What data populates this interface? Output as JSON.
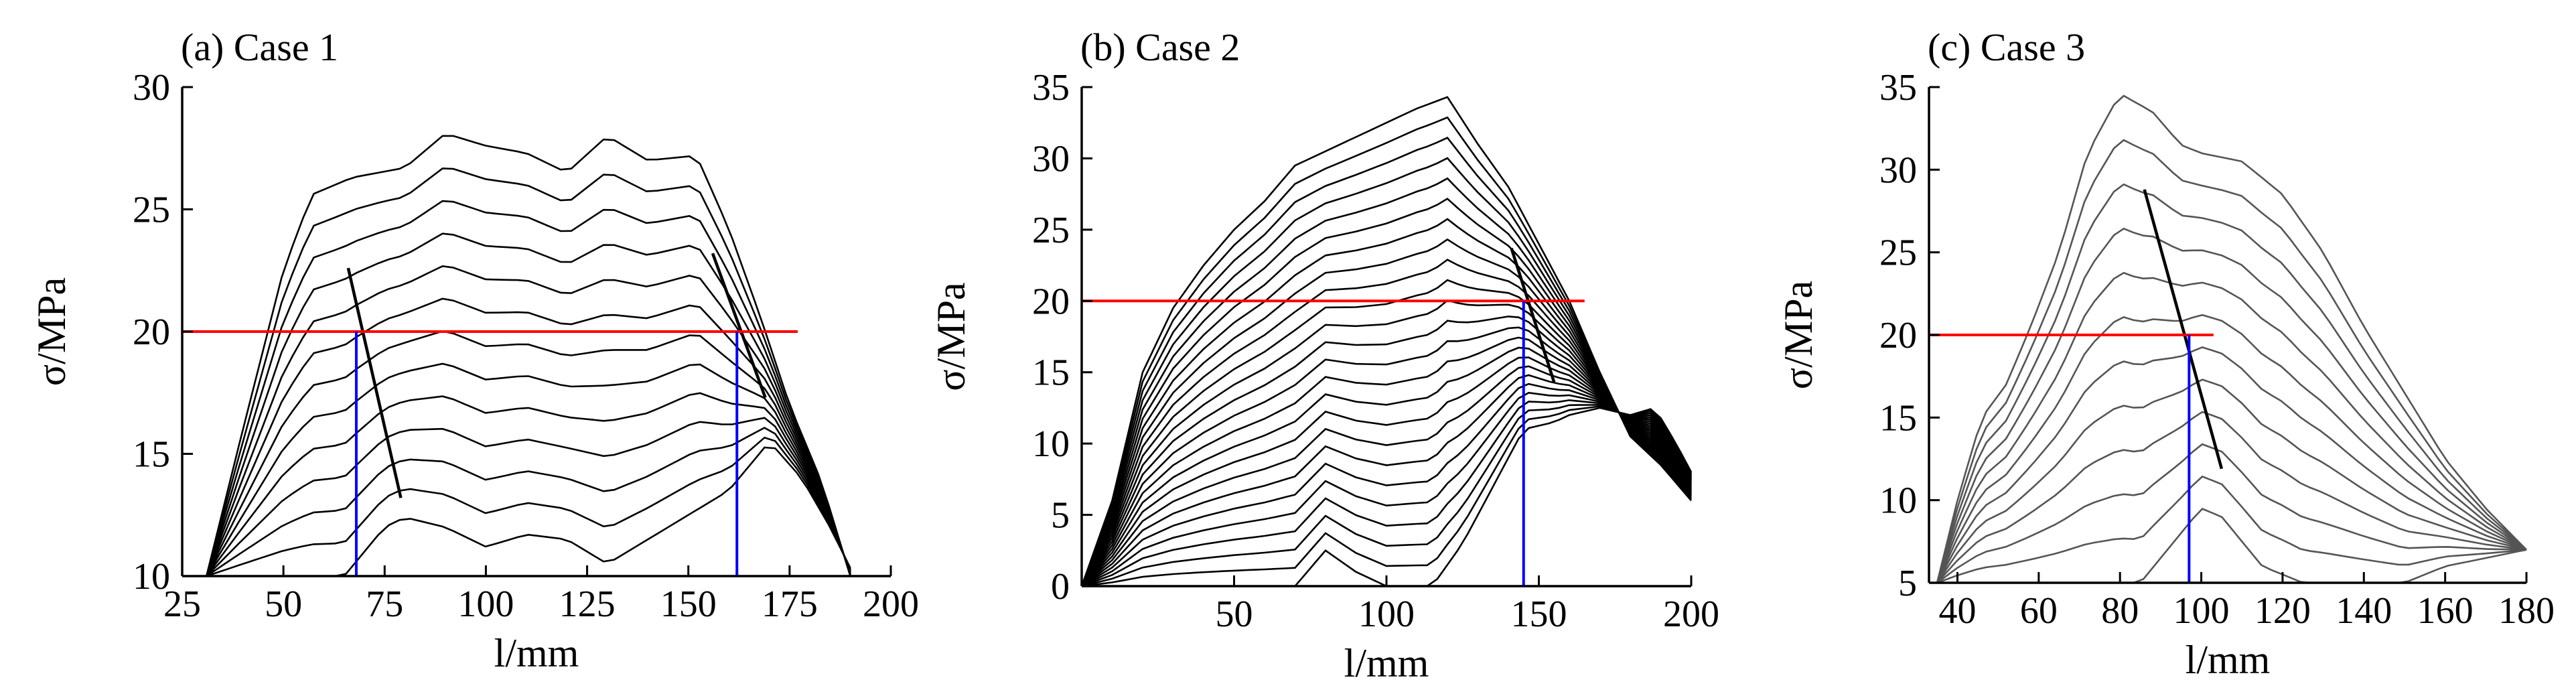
{
  "chart_data": [
    {
      "type": "line",
      "title": "(a) Case 1",
      "xlabel": "l/mm",
      "ylabel": "σ/MPa",
      "xlim": [
        25,
        200
      ],
      "ylim": [
        10,
        30
      ],
      "xticks": [
        25,
        50,
        75,
        100,
        125,
        150,
        175,
        200
      ],
      "yticks": [
        10,
        15,
        20,
        25,
        30
      ],
      "grid": false,
      "series_color": "#000000",
      "family": {
        "count": 13,
        "top_profile": [
          [
            31,
            10
          ],
          [
            40,
            16
          ],
          [
            50,
            22.5
          ],
          [
            57,
            25.6
          ],
          [
            67,
            26.3
          ],
          [
            80,
            26.7
          ],
          [
            90,
            28.1
          ],
          [
            100,
            27.6
          ],
          [
            110,
            27.3
          ],
          [
            120,
            26.5
          ],
          [
            130,
            28
          ],
          [
            140,
            27
          ],
          [
            152,
            27.2
          ],
          [
            160,
            24.2
          ],
          [
            168,
            20.5
          ],
          [
            175,
            17
          ],
          [
            183,
            13.8
          ],
          [
            190,
            10
          ]
        ],
        "bottom_profile": [
          [
            31,
            10
          ],
          [
            40,
            10
          ],
          [
            55,
            10
          ],
          [
            65,
            10
          ],
          [
            75,
            12
          ],
          [
            80,
            12.4
          ],
          [
            90,
            12
          ],
          [
            100,
            11.2
          ],
          [
            110,
            11.7
          ],
          [
            120,
            11.5
          ],
          [
            130,
            10.5
          ],
          [
            140,
            11.5
          ],
          [
            150,
            12.5
          ],
          [
            160,
            13.5
          ],
          [
            170,
            15.5
          ],
          [
            178,
            14
          ],
          [
            185,
            12
          ],
          [
            191,
            10
          ]
        ],
        "left_edge_x": 31,
        "right_edge_x": 190
      },
      "reference_line": {
        "y": 20,
        "x_from": 25,
        "x_to": 177,
        "color": "#ff0000"
      },
      "vertical_lines": [
        {
          "x": 68,
          "y_from": 10,
          "y_to": 20
        },
        {
          "x": 162,
          "y_from": 10,
          "y_to": 20
        }
      ],
      "vertical_line_color": "#0000ff",
      "trend_lines": [
        [
          [
            66,
            22.6
          ],
          [
            79,
            13.2
          ]
        ],
        [
          [
            156,
            23.2
          ],
          [
            169,
            17.3
          ]
        ]
      ],
      "trend_line_color": "#000000"
    },
    {
      "type": "line",
      "title": "(b) Case 2",
      "xlabel": "l/mm",
      "ylabel": "σ/MPa",
      "xlim": [
        0,
        200
      ],
      "ylim": [
        0,
        35
      ],
      "xticks": [
        50,
        100,
        150,
        200
      ],
      "yticks": [
        0,
        5,
        10,
        15,
        20,
        25,
        30,
        35
      ],
      "grid": false,
      "series_color": "#000000",
      "family": {
        "count": 24,
        "top_profile": [
          [
            0,
            0
          ],
          [
            10,
            6
          ],
          [
            20,
            15
          ],
          [
            30,
            19.5
          ],
          [
            40,
            22.5
          ],
          [
            50,
            25
          ],
          [
            60,
            27
          ],
          [
            70,
            29.5
          ],
          [
            80,
            30.5
          ],
          [
            90,
            31.5
          ],
          [
            100,
            32.5
          ],
          [
            110,
            33.5
          ],
          [
            120,
            34.3
          ],
          [
            130,
            31
          ],
          [
            140,
            28
          ],
          [
            150,
            24
          ],
          [
            160,
            20
          ],
          [
            170,
            15
          ],
          [
            180,
            10.5
          ],
          [
            190,
            8.5
          ],
          [
            200,
            6
          ]
        ],
        "bottom_profile": [
          [
            0,
            0
          ],
          [
            20,
            0
          ],
          [
            40,
            0
          ],
          [
            60,
            0
          ],
          [
            70,
            0
          ],
          [
            80,
            2.5
          ],
          [
            90,
            1
          ],
          [
            100,
            0
          ],
          [
            115,
            0
          ],
          [
            125,
            3
          ],
          [
            135,
            7
          ],
          [
            145,
            11
          ],
          [
            155,
            11.5
          ],
          [
            160,
            12
          ],
          [
            170,
            12.5
          ],
          [
            180,
            12
          ],
          [
            188,
            12.5
          ],
          [
            195,
            10
          ],
          [
            200,
            8
          ]
        ],
        "left_edge_x": 0,
        "right_edge_x": 200
      },
      "reference_line": {
        "y": 20,
        "x_from": 0,
        "x_to": 165,
        "color": "#ff0000"
      },
      "vertical_lines": [
        {
          "x": 145,
          "y_from": 0,
          "y_to": 20
        }
      ],
      "vertical_line_color": "#0000ff",
      "trend_lines": [
        [
          [
            141,
            23.7
          ],
          [
            155,
            14.3
          ]
        ]
      ],
      "trend_line_color": "#000000"
    },
    {
      "type": "line",
      "title": "(c) Case 3",
      "xlabel": "l/mm",
      "ylabel": "σ/MPa",
      "xlim": [
        33,
        180
      ],
      "ylim": [
        5,
        35
      ],
      "xticks": [
        40,
        60,
        80,
        100,
        120,
        140,
        160,
        180
      ],
      "yticks": [
        5,
        10,
        15,
        20,
        25,
        30,
        35
      ],
      "grid": false,
      "series_color": "#555555",
      "family": {
        "count": 12,
        "top_profile": [
          [
            35,
            5
          ],
          [
            40,
            10
          ],
          [
            46,
            15
          ],
          [
            52,
            17
          ],
          [
            58,
            20.5
          ],
          [
            65,
            25
          ],
          [
            72,
            31
          ],
          [
            80,
            34.6
          ],
          [
            88,
            33.5
          ],
          [
            95,
            31.5
          ],
          [
            100,
            31
          ],
          [
            110,
            30.5
          ],
          [
            120,
            28.5
          ],
          [
            130,
            25
          ],
          [
            140,
            20.5
          ],
          [
            150,
            16.5
          ],
          [
            160,
            12.5
          ],
          [
            170,
            9.5
          ],
          [
            180,
            7
          ]
        ],
        "bottom_profile": [
          [
            38,
            5
          ],
          [
            55,
            5
          ],
          [
            70,
            5
          ],
          [
            85,
            5
          ],
          [
            95,
            8
          ],
          [
            100,
            9.5
          ],
          [
            105,
            9
          ],
          [
            115,
            6
          ],
          [
            125,
            5
          ],
          [
            140,
            5
          ],
          [
            150,
            5
          ],
          [
            160,
            6
          ],
          [
            170,
            6.5
          ],
          [
            180,
            7
          ]
        ],
        "left_edge_x": 35,
        "right_edge_x": 180
      },
      "reference_line": {
        "y": 20,
        "x_from": 33,
        "x_to": 103,
        "color": "#ff0000"
      },
      "vertical_lines": [
        {
          "x": 97,
          "y_from": 5,
          "y_to": 20
        }
      ],
      "vertical_line_color": "#0000ff",
      "trend_lines": [
        [
          [
            86,
            28.8
          ],
          [
            105,
            11.9
          ]
        ]
      ],
      "trend_line_color": "#000000"
    }
  ]
}
